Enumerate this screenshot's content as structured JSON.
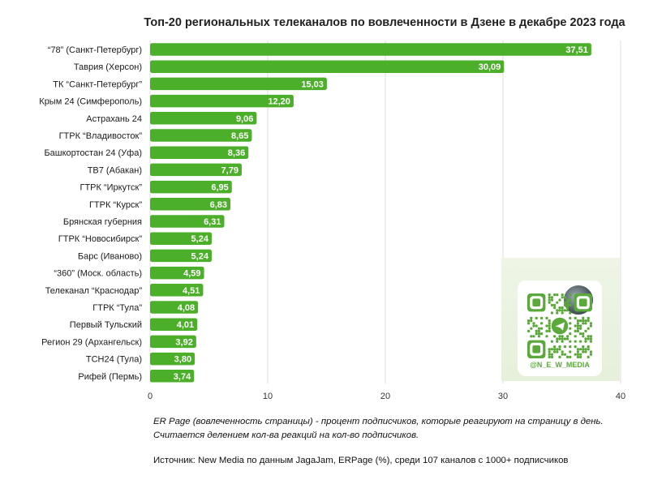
{
  "chart_data": {
    "type": "bar",
    "orientation": "horizontal",
    "title": "Топ-20 региональных телеканалов по вовлеченности в Дзене в декабре 2023 года",
    "categories": [
      "“78” (Санкт-Петербург)",
      "Таврия (Херсон)",
      "ТК “Санкт-Петербург”",
      "Крым 24 (Симферополь)",
      "Астрахань 24",
      "ГТРК “Владивосток”",
      "Башкортостан 24 (Уфа)",
      "ТВ7 (Абакан)",
      "ГТРК “Иркутск”",
      "ГТРК “Курск”",
      "Брянская губерния",
      "ГТРК “Новосибирск”",
      "Барс (Иваново)",
      "“360” (Моск. область)",
      "Телеканал “Краснодар”",
      "ГТРК “Тула”",
      "Первый Тульский",
      "Регион 29 (Архангельск)",
      "ТСН24 (Тула)",
      "Рифей (Пермь)"
    ],
    "values": [
      37.51,
      30.09,
      15.03,
      12.2,
      9.06,
      8.65,
      8.36,
      7.79,
      6.95,
      6.83,
      6.31,
      5.24,
      5.24,
      4.59,
      4.51,
      4.08,
      4.01,
      3.92,
      3.8,
      3.74
    ],
    "value_labels": [
      "37,51",
      "30,09",
      "15,03",
      "12,20",
      "9,06",
      "8,65",
      "8,36",
      "7,79",
      "6,95",
      "6,83",
      "6,31",
      "5,24",
      "5,24",
      "4,59",
      "4,51",
      "4,08",
      "4,01",
      "3,92",
      "3,80",
      "3,74"
    ],
    "xlim": [
      0,
      40
    ],
    "xticks": [
      0,
      10,
      20,
      30,
      40
    ],
    "grid": true,
    "bar_color": "#4caf2a",
    "label_color": "#ffffff"
  },
  "notes": {
    "erpage": "ER Page (вовлеченность страницы) - процент подписчиков, которые реагируют на страницу в день. Считается делением кол-ва реакций на кол-во подписчиков.",
    "source": "Источник: New Media по данным JagaJam, ERPage (%), среди 107 каналов с 1000+ подписчиков"
  },
  "qr_card": {
    "handle": "@N_E_W_MEDIA"
  },
  "colors": {
    "qr_green": "#5aa93a",
    "grid": "#dddddd"
  }
}
